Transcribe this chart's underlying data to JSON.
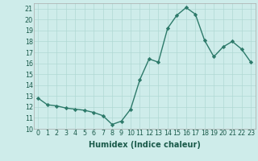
{
  "x": [
    0,
    1,
    2,
    3,
    4,
    5,
    6,
    7,
    8,
    9,
    10,
    11,
    12,
    13,
    14,
    15,
    16,
    17,
    18,
    19,
    20,
    21,
    22,
    23
  ],
  "y": [
    12.8,
    12.2,
    12.1,
    11.9,
    11.8,
    11.7,
    11.5,
    11.2,
    10.4,
    10.7,
    11.8,
    14.5,
    16.4,
    16.1,
    19.2,
    20.4,
    21.1,
    20.5,
    18.1,
    16.6,
    17.5,
    18.0,
    17.3,
    16.1
  ],
  "line_color": "#2d7a6a",
  "marker_color": "#2d7a6a",
  "bg_color": "#ceecea",
  "grid_color": "#b0d8d4",
  "xlabel": "Humidex (Indice chaleur)",
  "ylim": [
    10,
    21.5
  ],
  "xlim": [
    -0.5,
    23.5
  ],
  "yticks": [
    10,
    11,
    12,
    13,
    14,
    15,
    16,
    17,
    18,
    19,
    20,
    21
  ],
  "xticks": [
    0,
    1,
    2,
    3,
    4,
    5,
    6,
    7,
    8,
    9,
    10,
    11,
    12,
    13,
    14,
    15,
    16,
    17,
    18,
    19,
    20,
    21,
    22,
    23
  ],
  "xlabel_fontsize": 7,
  "tick_fontsize": 5.8,
  "line_width": 1.0,
  "marker_size": 2.2
}
